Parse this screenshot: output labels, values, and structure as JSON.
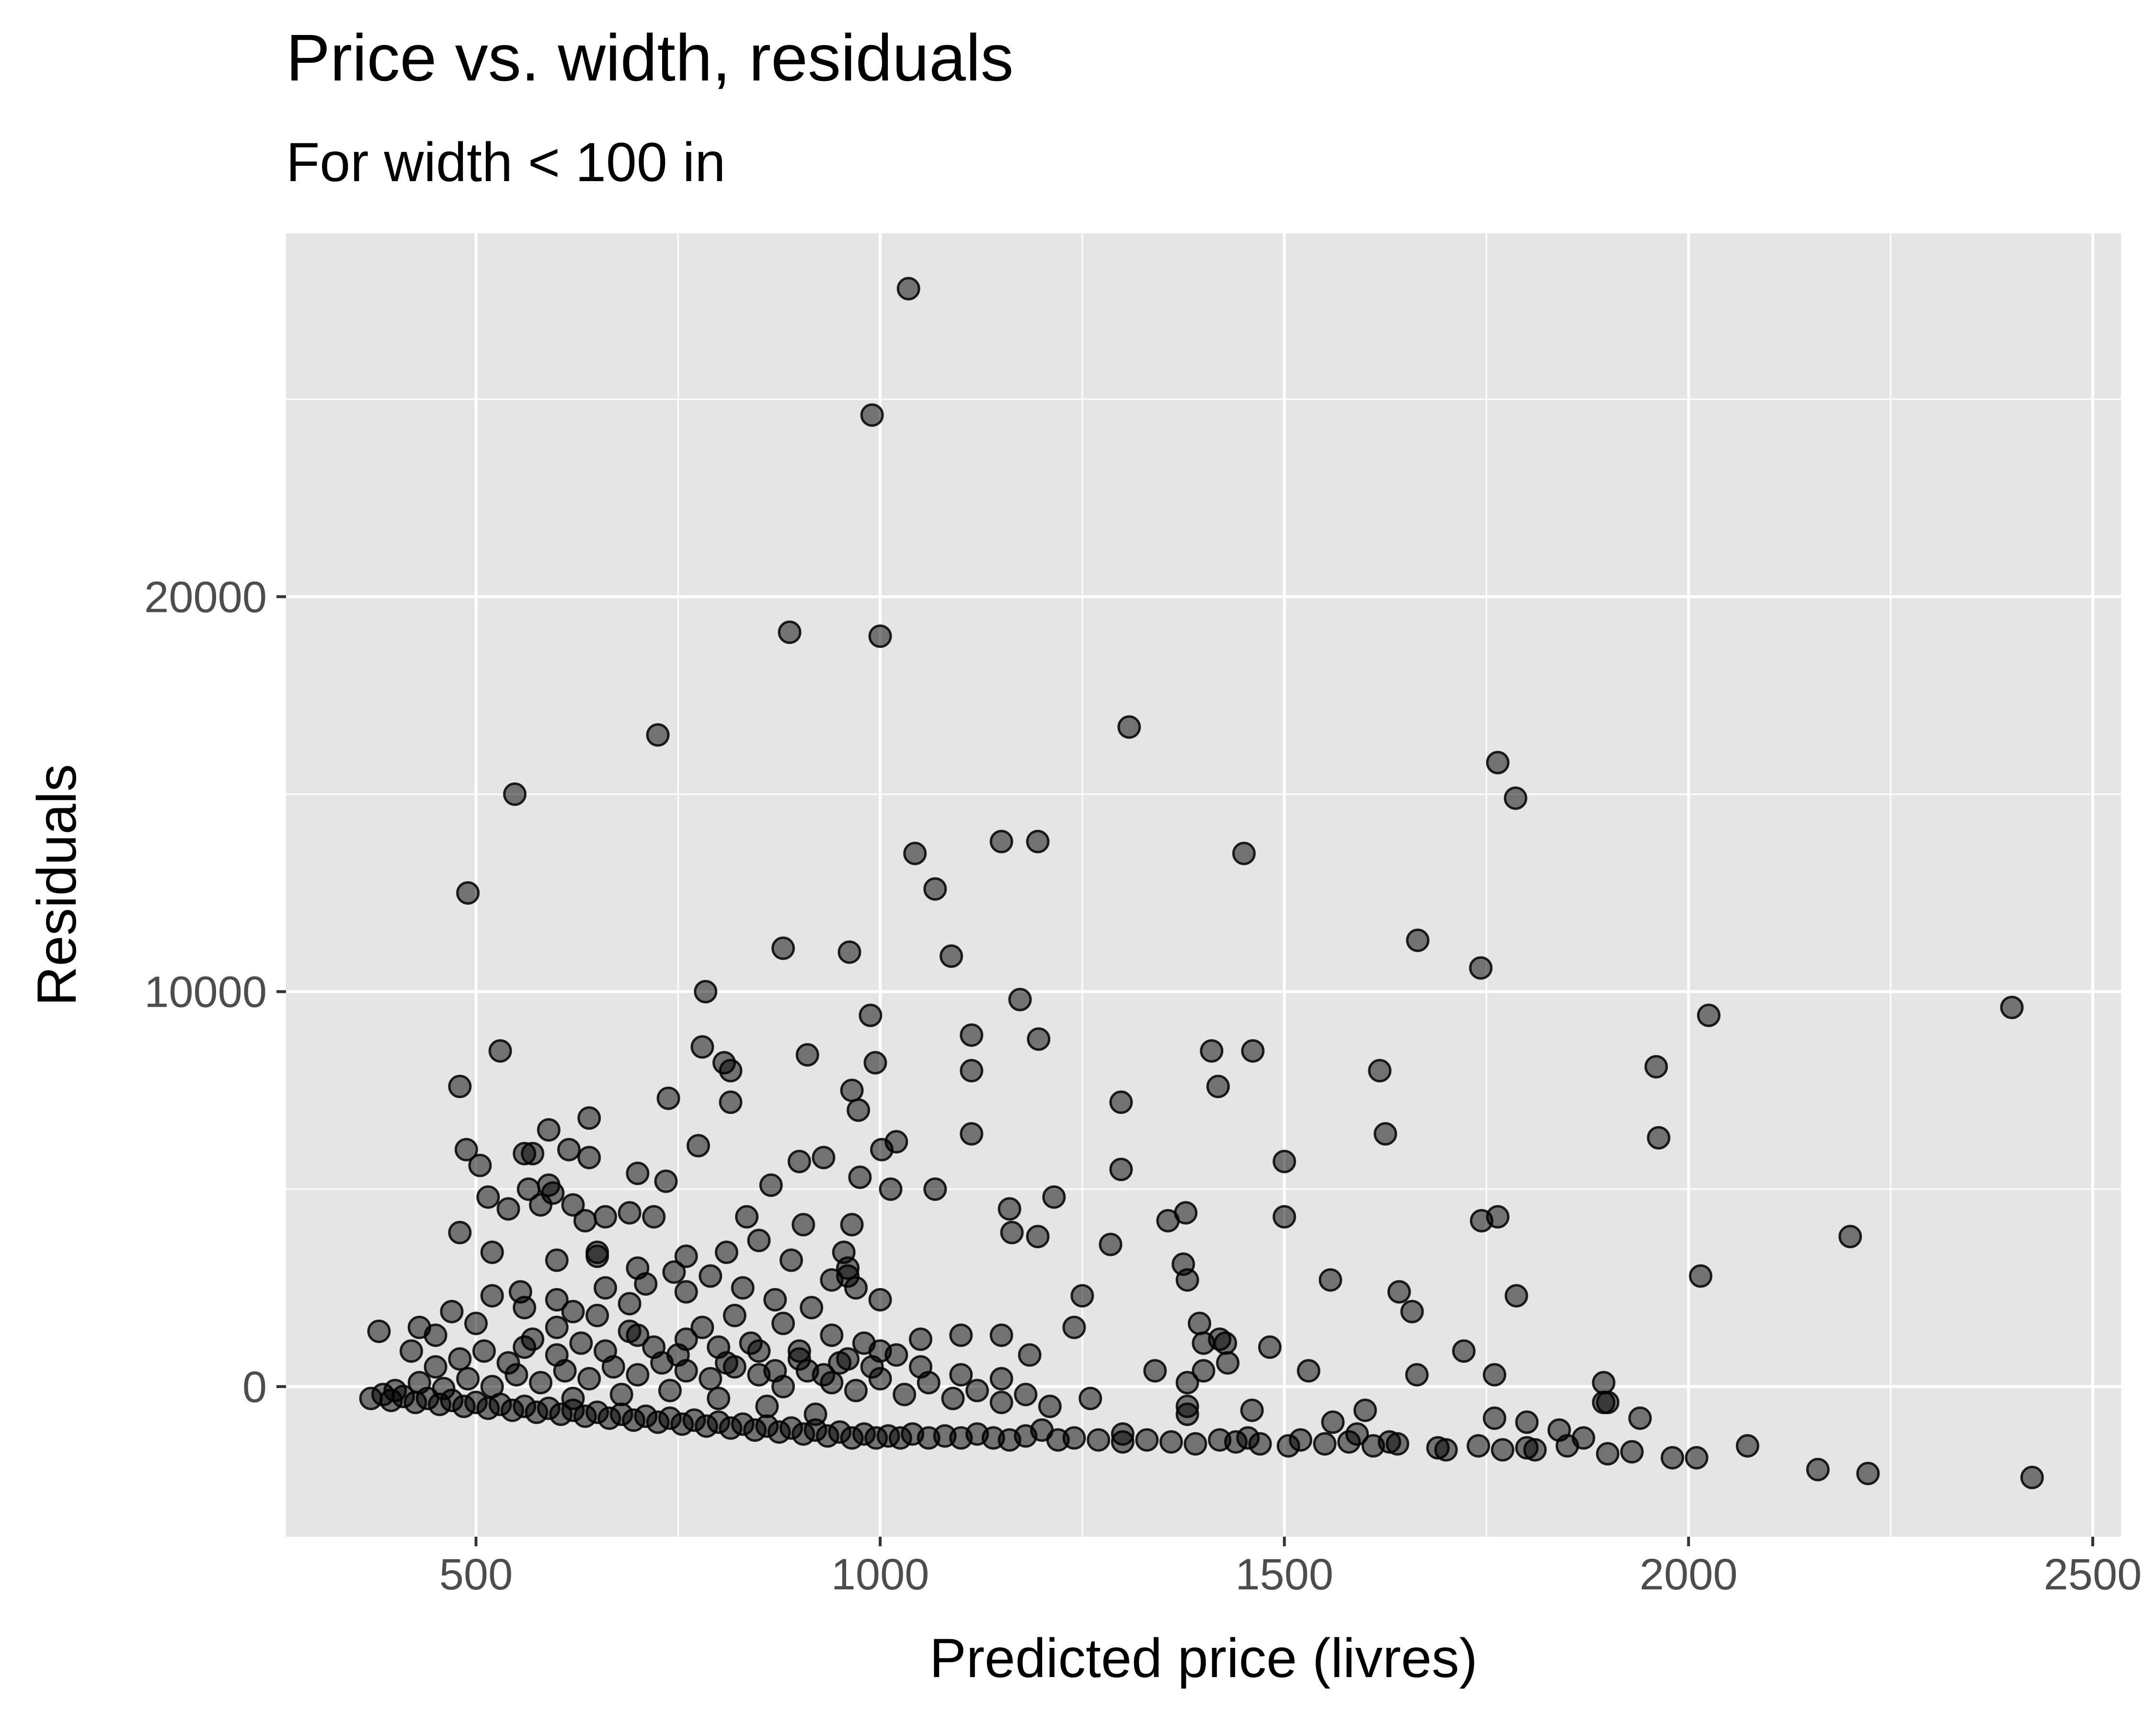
{
  "chart_data": {
    "type": "scatter",
    "title": "Price vs. width, residuals",
    "subtitle": "For width < 100 in",
    "xlabel": "Predicted price (livres)",
    "ylabel": "Residuals",
    "xlim": [
      265,
      2535
    ],
    "ylim": [
      -3800,
      29200
    ],
    "x_ticks": [
      500,
      1000,
      1500,
      2000,
      2500
    ],
    "x_tick_labels": [
      "500",
      "1000",
      "1500",
      "2000",
      "2500"
    ],
    "y_ticks": [
      0,
      10000,
      20000
    ],
    "y_tick_labels": [
      "0",
      "10000",
      "20000"
    ],
    "grid": true,
    "point_color": "#000000",
    "point_opacity": 0.5,
    "panel_background": "#e5e5e5",
    "grid_color": "#ffffff",
    "points": [
      [
        1035,
        27800
      ],
      [
        990,
        24600
      ],
      [
        888,
        19100
      ],
      [
        1000,
        19000
      ],
      [
        725,
        16500
      ],
      [
        1308,
        16700
      ],
      [
        1764,
        15800
      ],
      [
        1786,
        14900
      ],
      [
        548,
        15000
      ],
      [
        1043,
        13500
      ],
      [
        1150,
        13800
      ],
      [
        1195,
        13800
      ],
      [
        1450,
        13500
      ],
      [
        1068,
        12600
      ],
      [
        490,
        12500
      ],
      [
        1665,
        11300
      ],
      [
        1743,
        10600
      ],
      [
        880,
        11100
      ],
      [
        962,
        11000
      ],
      [
        1088,
        10900
      ],
      [
        2025,
        9400
      ],
      [
        2400,
        9600
      ],
      [
        784,
        10000
      ],
      [
        988,
        9400
      ],
      [
        1113,
        8900
      ],
      [
        1173,
        9800
      ],
      [
        1196,
        8800
      ],
      [
        910,
        8400
      ],
      [
        1410,
        8500
      ],
      [
        1461,
        8500
      ],
      [
        1618,
        8000
      ],
      [
        1960,
        8100
      ],
      [
        780,
        8600
      ],
      [
        807,
        8200
      ],
      [
        815,
        8000
      ],
      [
        480,
        7600
      ],
      [
        530,
        8500
      ],
      [
        1113,
        8000
      ],
      [
        994,
        8200
      ],
      [
        1418,
        7600
      ],
      [
        965,
        7500
      ],
      [
        1298,
        7200
      ],
      [
        973,
        7000
      ],
      [
        738,
        7300
      ],
      [
        815,
        7200
      ],
      [
        1113,
        6400
      ],
      [
        1625,
        6400
      ],
      [
        1963,
        6300
      ],
      [
        1002,
        6000
      ],
      [
        1020,
        6200
      ],
      [
        775,
        6100
      ],
      [
        590,
        6500
      ],
      [
        640,
        6800
      ],
      [
        560,
        5900
      ],
      [
        1500,
        5700
      ],
      [
        1298,
        5500
      ],
      [
        488,
        6000
      ],
      [
        570,
        5900
      ],
      [
        505,
        5600
      ],
      [
        615,
        6000
      ],
      [
        640,
        5800
      ],
      [
        700,
        5400
      ],
      [
        735,
        5200
      ],
      [
        865,
        5100
      ],
      [
        900,
        5700
      ],
      [
        930,
        5800
      ],
      [
        975,
        5300
      ],
      [
        1013,
        5000
      ],
      [
        1068,
        5000
      ],
      [
        1215,
        4800
      ],
      [
        1160,
        4500
      ],
      [
        1500,
        4300
      ],
      [
        1356,
        4200
      ],
      [
        1378,
        4400
      ],
      [
        1744,
        4200
      ],
      [
        1764,
        4300
      ],
      [
        2200,
        3800
      ],
      [
        580,
        4600
      ],
      [
        540,
        4500
      ],
      [
        635,
        4200
      ],
      [
        660,
        4300
      ],
      [
        835,
        4300
      ],
      [
        905,
        4100
      ],
      [
        965,
        4100
      ],
      [
        1163,
        3900
      ],
      [
        1195,
        3800
      ],
      [
        1285,
        3600
      ],
      [
        1375,
        3100
      ],
      [
        1380,
        2700
      ],
      [
        1557,
        2700
      ],
      [
        1642,
        2400
      ],
      [
        1658,
        1900
      ],
      [
        2015,
        2800
      ],
      [
        1787,
        2300
      ],
      [
        480,
        3900
      ],
      [
        520,
        3400
      ],
      [
        555,
        2400
      ],
      [
        600,
        3200
      ],
      [
        650,
        3300
      ],
      [
        700,
        3000
      ],
      [
        745,
        2900
      ],
      [
        790,
        2800
      ],
      [
        830,
        2500
      ],
      [
        870,
        2200
      ],
      [
        915,
        2000
      ],
      [
        960,
        2800
      ],
      [
        1000,
        2200
      ],
      [
        1250,
        2300
      ],
      [
        1240,
        1500
      ],
      [
        1395,
        1600
      ],
      [
        1427,
        1100
      ],
      [
        1482,
        1000
      ],
      [
        1530,
        400
      ],
      [
        1664,
        300
      ],
      [
        1722,
        900
      ],
      [
        1760,
        300
      ],
      [
        1895,
        100
      ],
      [
        1895,
        -400
      ],
      [
        1940,
        -800
      ],
      [
        2073,
        -1500
      ],
      [
        2160,
        -2100
      ],
      [
        2222,
        -2200
      ],
      [
        2425,
        -2300
      ],
      [
        1980,
        -1800
      ],
      [
        2010,
        -1800
      ],
      [
        1700,
        -1600
      ],
      [
        1810,
        -1600
      ],
      [
        1560,
        -900
      ],
      [
        1590,
        -1200
      ],
      [
        1630,
        -1400
      ],
      [
        1505,
        -1500
      ],
      [
        1455,
        -1300
      ],
      [
        1300,
        -1200
      ],
      [
        1200,
        -1100
      ],
      [
        380,
        1400
      ],
      [
        420,
        900
      ],
      [
        450,
        1300
      ],
      [
        500,
        1600
      ],
      [
        560,
        1000
      ],
      [
        600,
        1500
      ],
      [
        650,
        1800
      ],
      [
        700,
        1300
      ],
      [
        760,
        1200
      ],
      [
        800,
        1000
      ],
      [
        850,
        900
      ],
      [
        900,
        700
      ],
      [
        950,
        600
      ],
      [
        1050,
        500
      ],
      [
        1100,
        300
      ],
      [
        1150,
        200
      ],
      [
        1260,
        -300
      ],
      [
        1340,
        400
      ],
      [
        1400,
        1100
      ],
      [
        1430,
        600
      ],
      [
        370,
        -300
      ],
      [
        385,
        -200
      ],
      [
        395,
        -350
      ],
      [
        410,
        -250
      ],
      [
        425,
        -400
      ],
      [
        440,
        -300
      ],
      [
        455,
        -450
      ],
      [
        470,
        -350
      ],
      [
        485,
        -500
      ],
      [
        500,
        -400
      ],
      [
        515,
        -550
      ],
      [
        530,
        -450
      ],
      [
        545,
        -600
      ],
      [
        560,
        -500
      ],
      [
        575,
        -650
      ],
      [
        590,
        -550
      ],
      [
        605,
        -700
      ],
      [
        620,
        -600
      ],
      [
        635,
        -750
      ],
      [
        650,
        -650
      ],
      [
        665,
        -800
      ],
      [
        680,
        -700
      ],
      [
        695,
        -850
      ],
      [
        710,
        -750
      ],
      [
        725,
        -900
      ],
      [
        740,
        -800
      ],
      [
        755,
        -950
      ],
      [
        770,
        -850
      ],
      [
        785,
        -1000
      ],
      [
        800,
        -900
      ],
      [
        815,
        -1050
      ],
      [
        830,
        -950
      ],
      [
        845,
        -1100
      ],
      [
        860,
        -1000
      ],
      [
        875,
        -1150
      ],
      [
        890,
        -1050
      ],
      [
        905,
        -1200
      ],
      [
        920,
        -1100
      ],
      [
        935,
        -1250
      ],
      [
        950,
        -1150
      ],
      [
        965,
        -1300
      ],
      [
        980,
        -1200
      ],
      [
        995,
        -1300
      ],
      [
        1010,
        -1250
      ],
      [
        1025,
        -1300
      ],
      [
        1040,
        -1200
      ],
      [
        1060,
        -1300
      ],
      [
        1080,
        -1250
      ],
      [
        1100,
        -1300
      ],
      [
        1120,
        -1200
      ],
      [
        1140,
        -1300
      ],
      [
        1160,
        -1350
      ],
      [
        1180,
        -1250
      ],
      [
        1220,
        -1350
      ],
      [
        1240,
        -1300
      ],
      [
        1270,
        -1350
      ],
      [
        1300,
        -1400
      ],
      [
        1330,
        -1350
      ],
      [
        1360,
        -1400
      ],
      [
        1390,
        -1450
      ],
      [
        1420,
        -1350
      ],
      [
        1440,
        -1400
      ],
      [
        1470,
        -1450
      ],
      [
        1520,
        -1350
      ],
      [
        1550,
        -1450
      ],
      [
        1580,
        -1400
      ],
      [
        1610,
        -1500
      ],
      [
        1640,
        -1450
      ],
      [
        1690,
        -1550
      ],
      [
        1740,
        -1500
      ],
      [
        1770,
        -1600
      ],
      [
        1800,
        -1550
      ],
      [
        1850,
        -1500
      ],
      [
        1870,
        -1300
      ],
      [
        1900,
        -1700
      ],
      [
        1930,
        -1650
      ],
      [
        400,
        -100
      ],
      [
        430,
        100
      ],
      [
        460,
        -50
      ],
      [
        490,
        200
      ],
      [
        520,
        0
      ],
      [
        550,
        300
      ],
      [
        580,
        100
      ],
      [
        610,
        400
      ],
      [
        640,
        200
      ],
      [
        670,
        500
      ],
      [
        700,
        300
      ],
      [
        730,
        600
      ],
      [
        760,
        400
      ],
      [
        790,
        200
      ],
      [
        820,
        500
      ],
      [
        850,
        300
      ],
      [
        880,
        0
      ],
      [
        910,
        400
      ],
      [
        940,
        100
      ],
      [
        970,
        -100
      ],
      [
        1000,
        200
      ],
      [
        1030,
        -200
      ],
      [
        1060,
        100
      ],
      [
        1090,
        -300
      ],
      [
        1120,
        -100
      ],
      [
        1150,
        -400
      ],
      [
        1180,
        -200
      ],
      [
        1210,
        -500
      ],
      [
        450,
        500
      ],
      [
        480,
        700
      ],
      [
        510,
        900
      ],
      [
        540,
        600
      ],
      [
        570,
        1200
      ],
      [
        600,
        800
      ],
      [
        630,
        1100
      ],
      [
        660,
        900
      ],
      [
        690,
        1400
      ],
      [
        720,
        1000
      ],
      [
        750,
        800
      ],
      [
        780,
        1500
      ],
      [
        810,
        600
      ],
      [
        840,
        1100
      ],
      [
        870,
        400
      ],
      [
        900,
        900
      ],
      [
        930,
        300
      ],
      [
        960,
        700
      ],
      [
        990,
        500
      ],
      [
        1020,
        800
      ],
      [
        600,
        2200
      ],
      [
        620,
        1900
      ],
      [
        660,
        2500
      ],
      [
        690,
        2100
      ],
      [
        710,
        2600
      ],
      [
        760,
        2400
      ],
      [
        820,
        1800
      ],
      [
        880,
        1600
      ],
      [
        940,
        1300
      ],
      [
        980,
        1100
      ],
      [
        560,
        2000
      ],
      [
        520,
        2300
      ],
      [
        470,
        1900
      ],
      [
        430,
        1500
      ],
      [
        620,
        -300
      ],
      [
        680,
        -200
      ],
      [
        740,
        -100
      ],
      [
        800,
        -300
      ],
      [
        860,
        -500
      ],
      [
        920,
        -700
      ],
      [
        1380,
        -700
      ],
      [
        1380,
        -500
      ],
      [
        1380,
        100
      ],
      [
        1400,
        400
      ],
      [
        1420,
        1200
      ],
      [
        1460,
        -600
      ],
      [
        1600,
        -600
      ],
      [
        1900,
        -400
      ],
      [
        1800,
        -900
      ],
      [
        1840,
        -1100
      ],
      [
        1760,
        -800
      ],
      [
        1100,
        1300
      ],
      [
        1150,
        1300
      ],
      [
        1185,
        800
      ],
      [
        1050,
        1200
      ],
      [
        1000,
        900
      ],
      [
        940,
        2700
      ],
      [
        970,
        2500
      ],
      [
        960,
        3000
      ],
      [
        955,
        3400
      ],
      [
        890,
        3200
      ],
      [
        850,
        3700
      ],
      [
        810,
        3400
      ],
      [
        760,
        3300
      ],
      [
        720,
        4300
      ],
      [
        690,
        4400
      ],
      [
        650,
        3400
      ],
      [
        620,
        4600
      ],
      [
        595,
        4900
      ],
      [
        590,
        5100
      ],
      [
        565,
        5000
      ],
      [
        515,
        4800
      ]
    ]
  }
}
